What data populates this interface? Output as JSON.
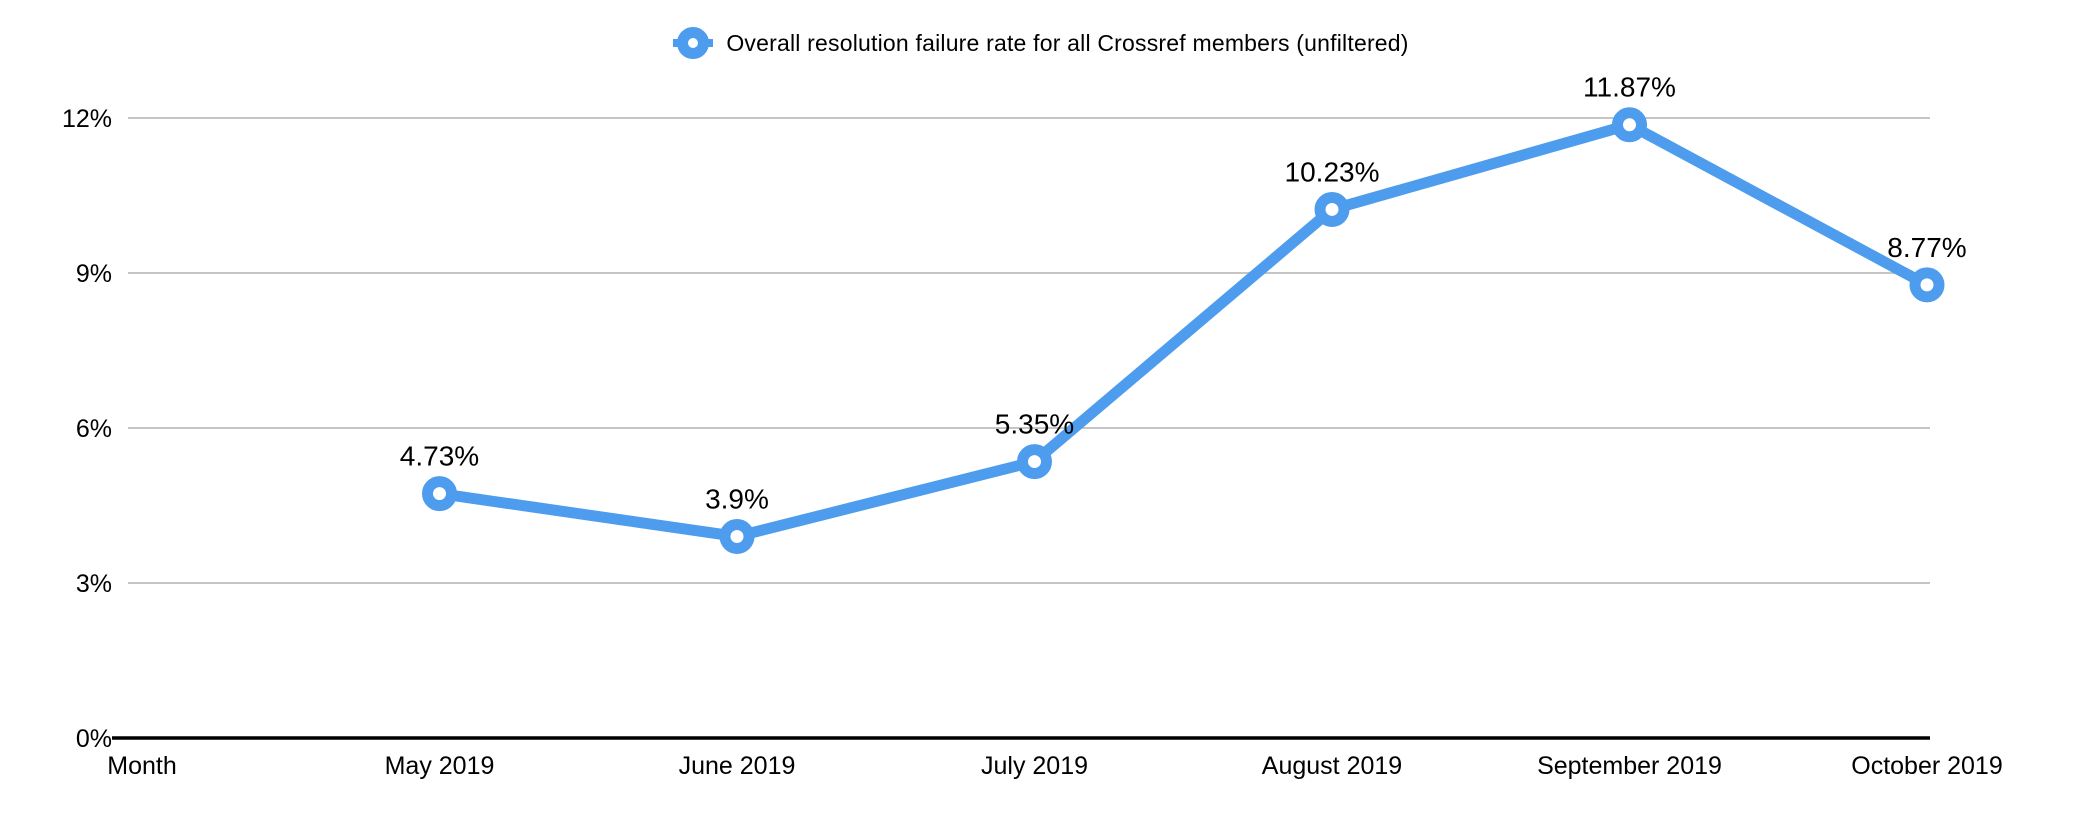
{
  "chart_data": {
    "type": "line",
    "legend": "Overall resolution failure rate for all Crossref members (unfiltered)",
    "legend_position": "top-center",
    "xlabel": "Month",
    "categories": [
      "Month",
      "May 2019",
      "June 2019",
      "July 2019",
      "August 2019",
      "September 2019",
      "October 2019"
    ],
    "values": [
      null,
      4.73,
      3.9,
      5.35,
      10.23,
      11.87,
      8.77
    ],
    "point_labels": [
      "",
      "4.73%",
      "3.9%",
      "5.35%",
      "10.23%",
      "11.87%",
      "8.77%"
    ],
    "y_ticks": [
      {
        "label": "0%",
        "value": 0
      },
      {
        "label": "3%",
        "value": 3
      },
      {
        "label": "6%",
        "value": 6
      },
      {
        "label": "9%",
        "value": 9
      },
      {
        "label": "12%",
        "value": 12
      }
    ],
    "ylim": [
      0,
      12
    ],
    "grid": "horizontal",
    "marker_style": "ring",
    "colors": {
      "line": "#4D9CEE",
      "marker_fill": "#FFFFFF",
      "gridline": "#C5C5C5",
      "axis": "#000000",
      "text": "#000000"
    }
  }
}
